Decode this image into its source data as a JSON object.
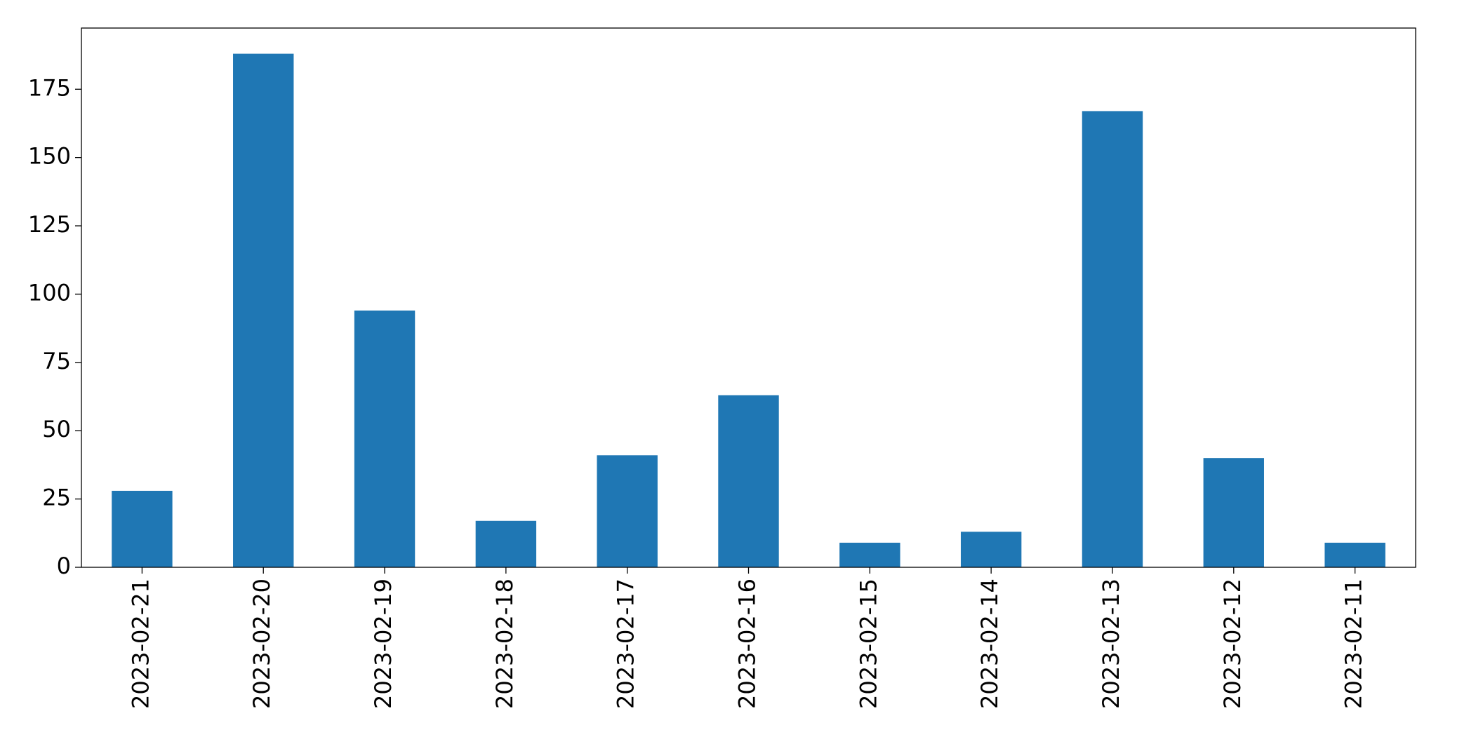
{
  "chart_data": {
    "type": "bar",
    "categories": [
      "2023-02-21",
      "2023-02-20",
      "2023-02-19",
      "2023-02-18",
      "2023-02-17",
      "2023-02-16",
      "2023-02-15",
      "2023-02-14",
      "2023-02-13",
      "2023-02-12",
      "2023-02-11"
    ],
    "values": [
      28,
      188,
      94,
      17,
      41,
      63,
      9,
      13,
      167,
      40,
      9
    ],
    "color": "#1f77b4",
    "ylim": [
      0,
      197.4
    ],
    "yticks": [
      0,
      25,
      50,
      75,
      100,
      125,
      150,
      175
    ],
    "grid": false
  }
}
